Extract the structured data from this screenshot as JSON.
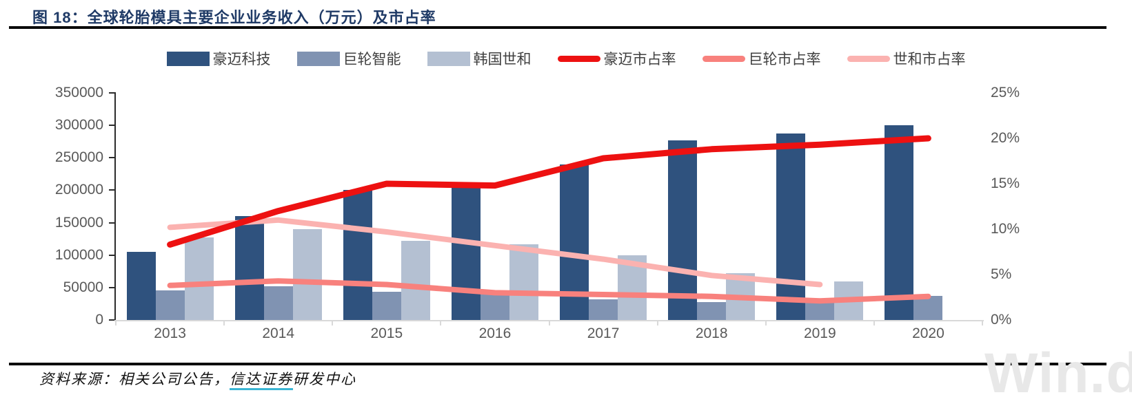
{
  "page": {
    "title": "图 18：全球轮胎模具主要企业业务收入（万元）及市占率",
    "source_prefix": "资料来源：相关公司公告，",
    "source_underlined": "信达证券",
    "source_suffix": "研发中心",
    "watermark": "Win.d"
  },
  "chart_data": {
    "type": "bar",
    "combo": "grouped bars with overlaid lines (dual axis)",
    "title": "全球轮胎模具主要企业业务收入（万元）及市占率",
    "categories": [
      "2013",
      "2014",
      "2015",
      "2016",
      "2017",
      "2018",
      "2019",
      "2020"
    ],
    "bar_series": [
      {
        "name": "豪迈科技",
        "color": "#2F527E",
        "values": [
          105000,
          160000,
          200000,
          205000,
          240000,
          277000,
          287000,
          300000
        ]
      },
      {
        "name": "巨轮智能",
        "color": "#8093B2",
        "values": [
          46000,
          52000,
          44000,
          40000,
          32000,
          28000,
          27000,
          37000
        ]
      },
      {
        "name": "韩国世和",
        "color": "#B4C0D2",
        "values": [
          127000,
          140000,
          122000,
          117000,
          100000,
          72000,
          59000,
          null
        ]
      }
    ],
    "line_series": [
      {
        "name": "豪迈市占率",
        "color": "#ED1111",
        "width": 9,
        "values": [
          8.3,
          12.0,
          15.0,
          14.8,
          17.8,
          18.8,
          19.3,
          20.0
        ]
      },
      {
        "name": "巨轮市占率",
        "color": "#F8817D",
        "width": 8,
        "values": [
          3.8,
          4.3,
          3.9,
          3.0,
          2.8,
          2.6,
          2.1,
          2.6
        ]
      },
      {
        "name": "世和市占率",
        "color": "#FBB2B0",
        "width": 8,
        "values": [
          10.2,
          11.0,
          9.7,
          8.2,
          6.7,
          4.9,
          3.9,
          null
        ]
      }
    ],
    "left_axis": {
      "min": 0,
      "max": 350000,
      "step": 50000,
      "tick_labels": [
        "0",
        "50000",
        "100000",
        "150000",
        "200000",
        "250000",
        "300000",
        "350000"
      ]
    },
    "right_axis": {
      "min": 0,
      "max": 25,
      "step": 5,
      "tick_labels": [
        "0%",
        "5%",
        "10%",
        "15%",
        "20%",
        "25%"
      ]
    },
    "legend_position": "top",
    "grid": false
  }
}
